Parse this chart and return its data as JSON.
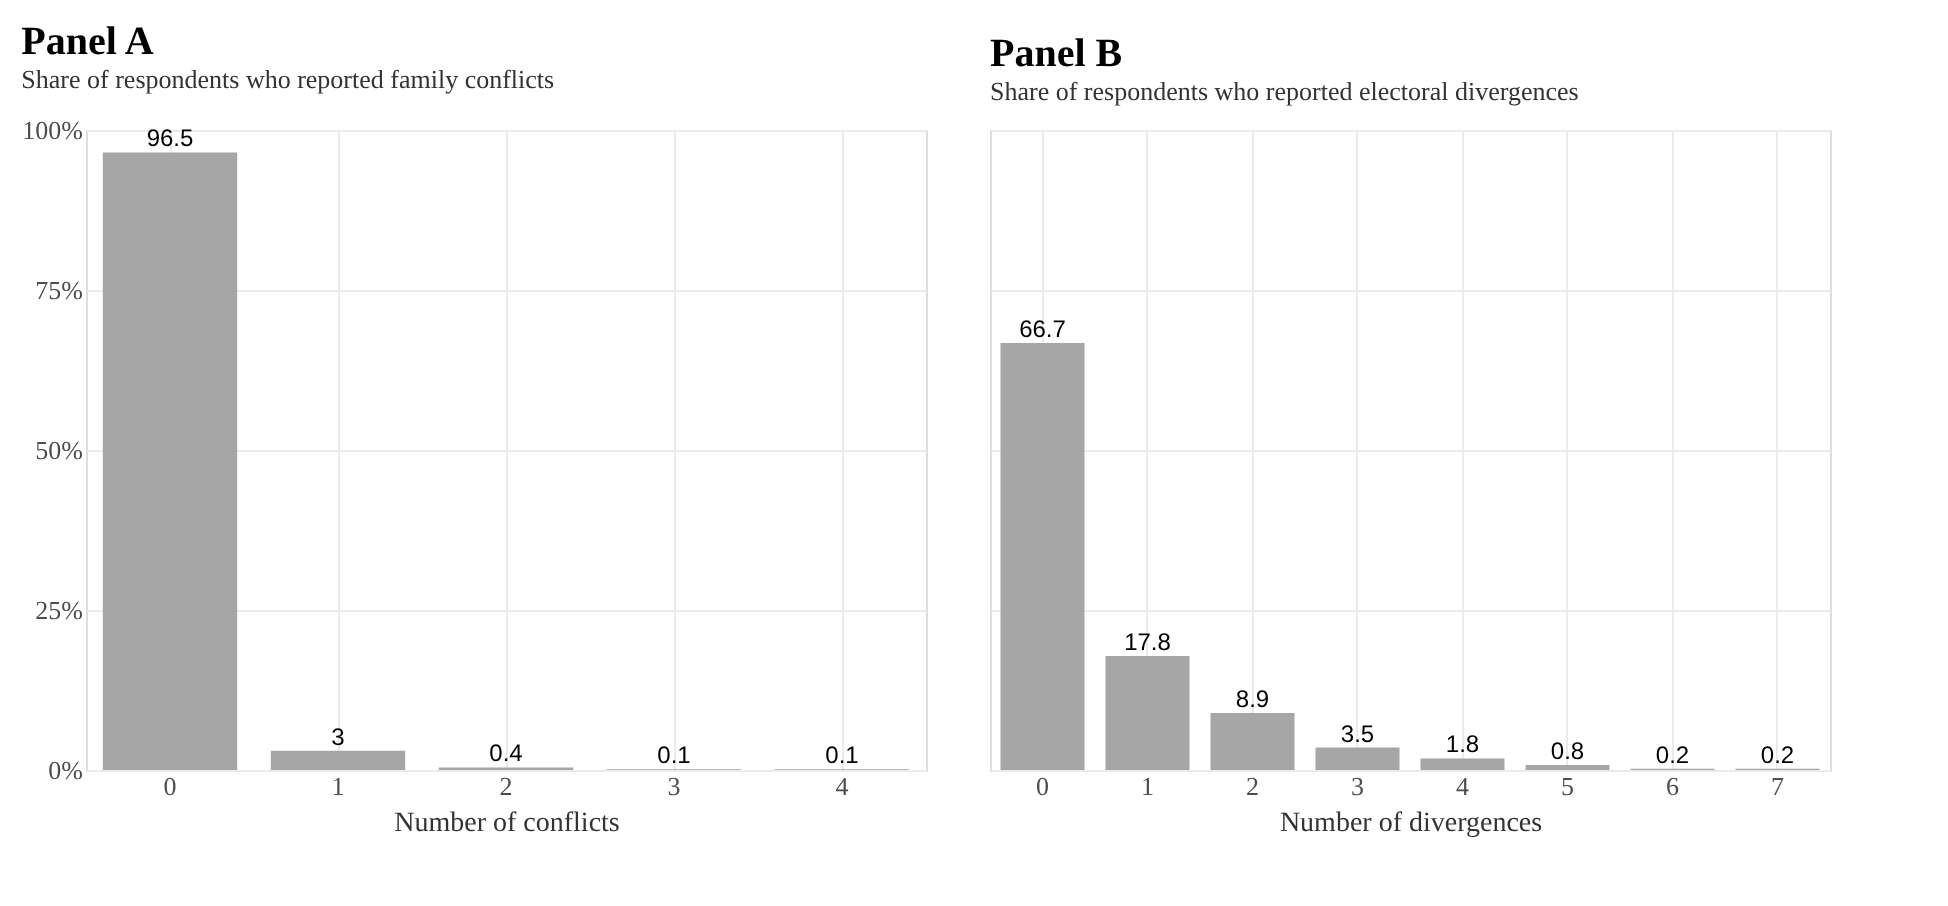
{
  "chart_data": [
    {
      "type": "bar",
      "title": "Panel A",
      "subtitle": "Share of respondents who reported family conflicts",
      "xlabel": "Number of conflicts",
      "categories": [
        "0",
        "1",
        "2",
        "3",
        "4"
      ],
      "series": [
        {
          "color": "#a6a6a6",
          "values": [
            96.5,
            3,
            0.4,
            0.1,
            0.1
          ]
        }
      ],
      "ylim": [
        0,
        100
      ],
      "yticks": [
        {
          "value": 0,
          "label": "0%"
        },
        {
          "value": 25,
          "label": "25%"
        },
        {
          "value": 50,
          "label": "50%"
        },
        {
          "value": 75,
          "label": "75%"
        },
        {
          "value": 100,
          "label": "100%"
        }
      ],
      "data_labels": true,
      "grid": true,
      "legend": false
    },
    {
      "type": "bar",
      "title": "Panel B",
      "subtitle": "Share of respondents who reported electoral divergences",
      "xlabel": "Number of divergences",
      "categories": [
        "0",
        "1",
        "2",
        "3",
        "4",
        "5",
        "6",
        "7"
      ],
      "series": [
        {
          "color": "#a6a6a6",
          "values": [
            66.7,
            17.8,
            8.9,
            3.5,
            1.8,
            0.8,
            0.2,
            0.2
          ]
        }
      ],
      "ylim": [
        0,
        100
      ],
      "yticks": [
        0,
        25,
        50,
        75,
        100
      ],
      "data_labels": true,
      "grid": true,
      "legend": false,
      "tick_labels": "x"
    }
  ]
}
